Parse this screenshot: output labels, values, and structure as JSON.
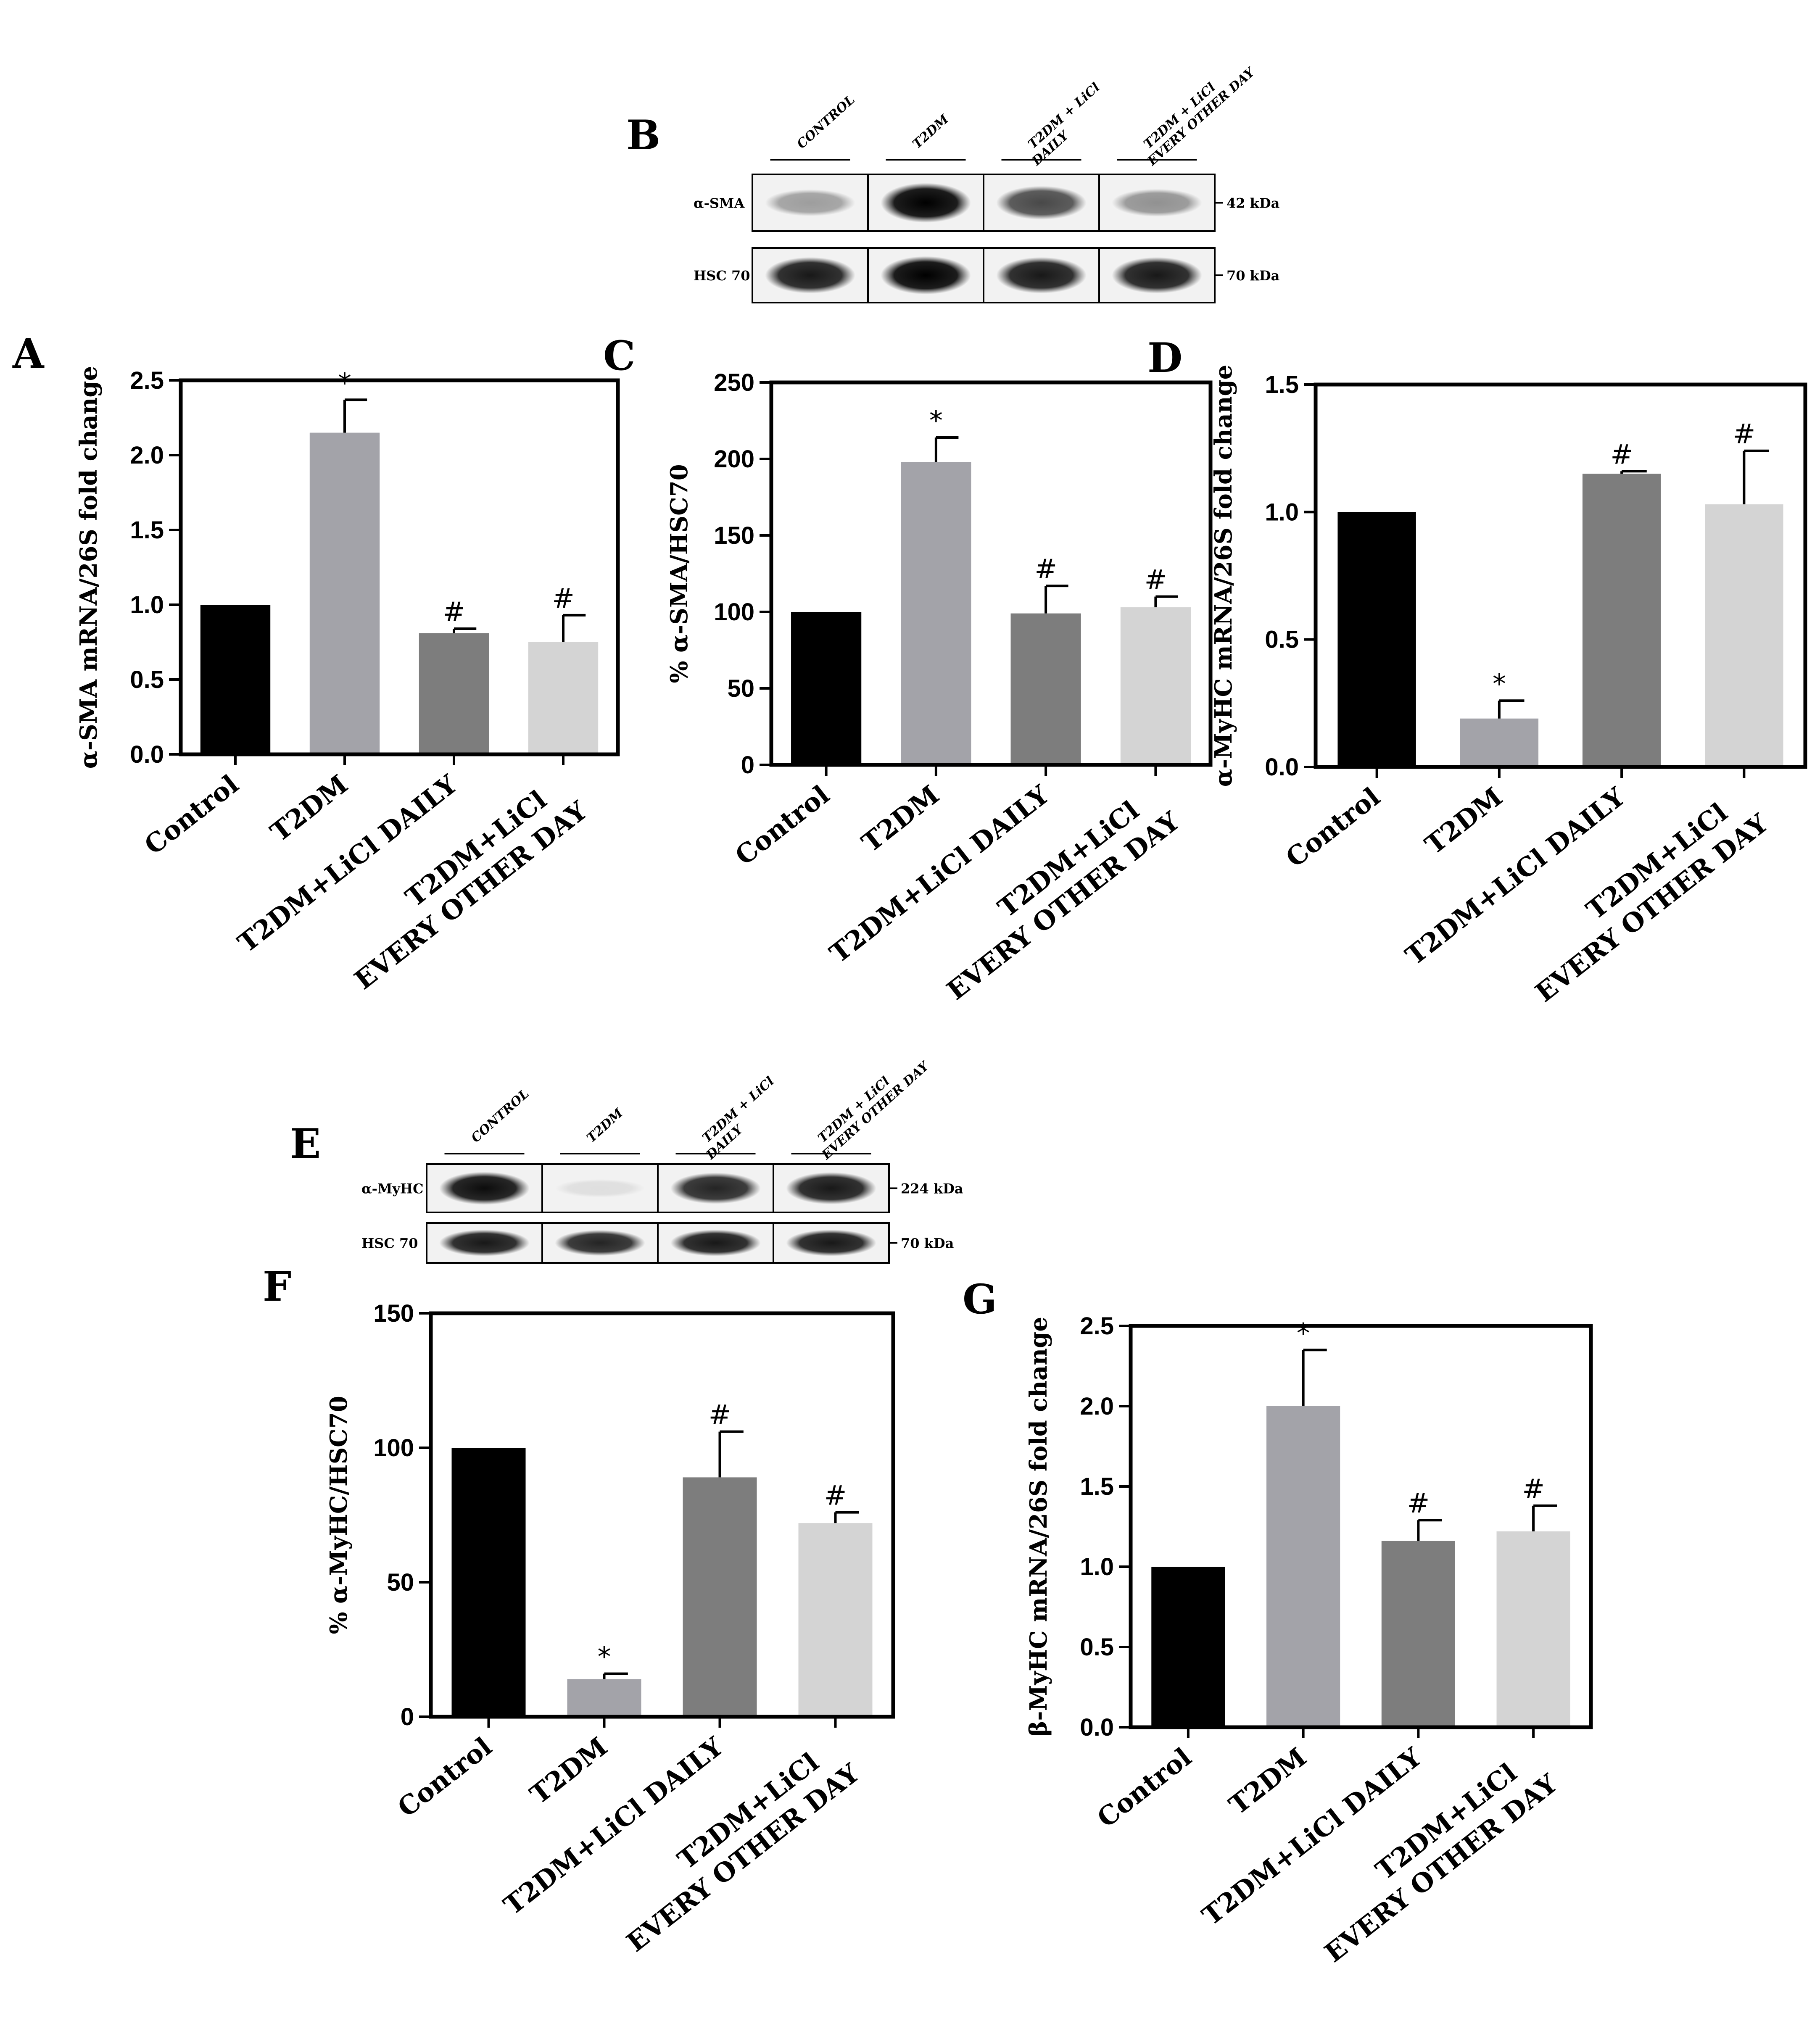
{
  "figure": {
    "colors": {
      "black": "#000000",
      "series": [
        "#000000",
        "#a3a3a9",
        "#7d7d7d",
        "#d4d4d4"
      ]
    }
  },
  "blots": {
    "B": {
      "letter": "B",
      "headers": [
        [
          "CONTROL"
        ],
        [
          "T2DM"
        ],
        [
          "T2DM + LiCl",
          "DAILY"
        ],
        [
          "T2DM + LiCl",
          "EVERY OTHER DAY"
        ]
      ],
      "rows": [
        {
          "label": "α-SMA",
          "size": "42 kDa",
          "intensity": [
            0.35,
            1.0,
            0.7,
            0.4
          ]
        },
        {
          "label": "HSC 70",
          "size": "70 kDa",
          "intensity": [
            0.9,
            1.0,
            0.9,
            0.9
          ]
        }
      ]
    },
    "E": {
      "letter": "E",
      "headers": [
        [
          "CONTROL"
        ],
        [
          "T2DM"
        ],
        [
          "T2DM + LiCl",
          "DAILY"
        ],
        [
          "T2DM + LiCl",
          "EVERY OTHER DAY"
        ]
      ],
      "rows": [
        {
          "label": "α-MyHC",
          "size": "224 kDa",
          "intensity": [
            0.95,
            0.08,
            0.85,
            0.9
          ]
        },
        {
          "label": "HSC 70",
          "size": "70 kDa",
          "intensity": [
            0.9,
            0.85,
            0.9,
            0.9
          ]
        }
      ]
    }
  },
  "chart_data": [
    {
      "type": "bar",
      "letter": "A",
      "categories": [
        [
          "Control"
        ],
        [
          "T2DM"
        ],
        [
          "T2DM+LiCl DAILY"
        ],
        [
          "T2DM+LiCl",
          "EVERY OTHER DAY"
        ]
      ],
      "values": [
        1.0,
        2.15,
        0.81,
        0.75
      ],
      "errors": [
        0,
        0.22,
        0.03,
        0.18
      ],
      "marks": [
        "",
        "*",
        "#",
        "#"
      ],
      "ylabel": "α-SMA mRNA/26S fold change",
      "ylim": [
        0,
        2.5
      ],
      "yticks": [
        "0.0",
        "0.5",
        "1.0",
        "1.5",
        "2.0",
        "2.5"
      ]
    },
    {
      "type": "bar",
      "letter": "C",
      "categories": [
        [
          "Control"
        ],
        [
          "T2DM"
        ],
        [
          "T2DM+LiCl DAILY"
        ],
        [
          "T2DM+LiCl",
          "EVERY OTHER DAY"
        ]
      ],
      "values": [
        100,
        198,
        99,
        103
      ],
      "errors": [
        0,
        16,
        18,
        7
      ],
      "marks": [
        "",
        "*",
        "#",
        "#"
      ],
      "ylabel": "% α-SMA/HSC70",
      "ylim": [
        0,
        250
      ],
      "yticks": [
        "0",
        "50",
        "100",
        "150",
        "200",
        "250"
      ]
    },
    {
      "type": "bar",
      "letter": "D",
      "categories": [
        [
          "Control"
        ],
        [
          "T2DM"
        ],
        [
          "T2DM+LiCl DAILY"
        ],
        [
          "T2DM+LiCl",
          "EVERY OTHER DAY"
        ]
      ],
      "values": [
        1.0,
        0.19,
        1.15,
        1.03
      ],
      "errors": [
        0,
        0.07,
        0.01,
        0.21
      ],
      "marks": [
        "",
        "*",
        "#",
        "#"
      ],
      "ylabel": "α-MyHC mRNA/26S fold change",
      "ylim": [
        0,
        1.5
      ],
      "yticks": [
        "0.0",
        "0.5",
        "1.0",
        "1.5"
      ]
    },
    {
      "type": "bar",
      "letter": "F",
      "categories": [
        [
          "Control"
        ],
        [
          "T2DM"
        ],
        [
          "T2DM+LiCl DAILY"
        ],
        [
          "T2DM+LiCl",
          "EVERY OTHER DAY"
        ]
      ],
      "values": [
        100,
        14,
        89,
        72
      ],
      "errors": [
        0,
        2,
        17,
        4
      ],
      "marks": [
        "",
        "*",
        "#",
        "#"
      ],
      "ylabel": "% α-MyHC/HSC70",
      "ylim": [
        0,
        150
      ],
      "yticks": [
        "0",
        "50",
        "100",
        "150"
      ]
    },
    {
      "type": "bar",
      "letter": "G",
      "categories": [
        [
          "Control"
        ],
        [
          "T2DM"
        ],
        [
          "T2DM+LiCl DAILY"
        ],
        [
          "T2DM+LiCl",
          "EVERY OTHER DAY"
        ]
      ],
      "values": [
        1.0,
        2.0,
        1.16,
        1.22
      ],
      "errors": [
        0,
        0.35,
        0.13,
        0.16
      ],
      "marks": [
        "",
        "*",
        "#",
        "#"
      ],
      "ylabel": "β-MyHC mRNA/26S fold change",
      "ylim": [
        0,
        2.5
      ],
      "yticks": [
        "0.0",
        "0.5",
        "1.0",
        "1.5",
        "2.0",
        "2.5"
      ]
    }
  ]
}
